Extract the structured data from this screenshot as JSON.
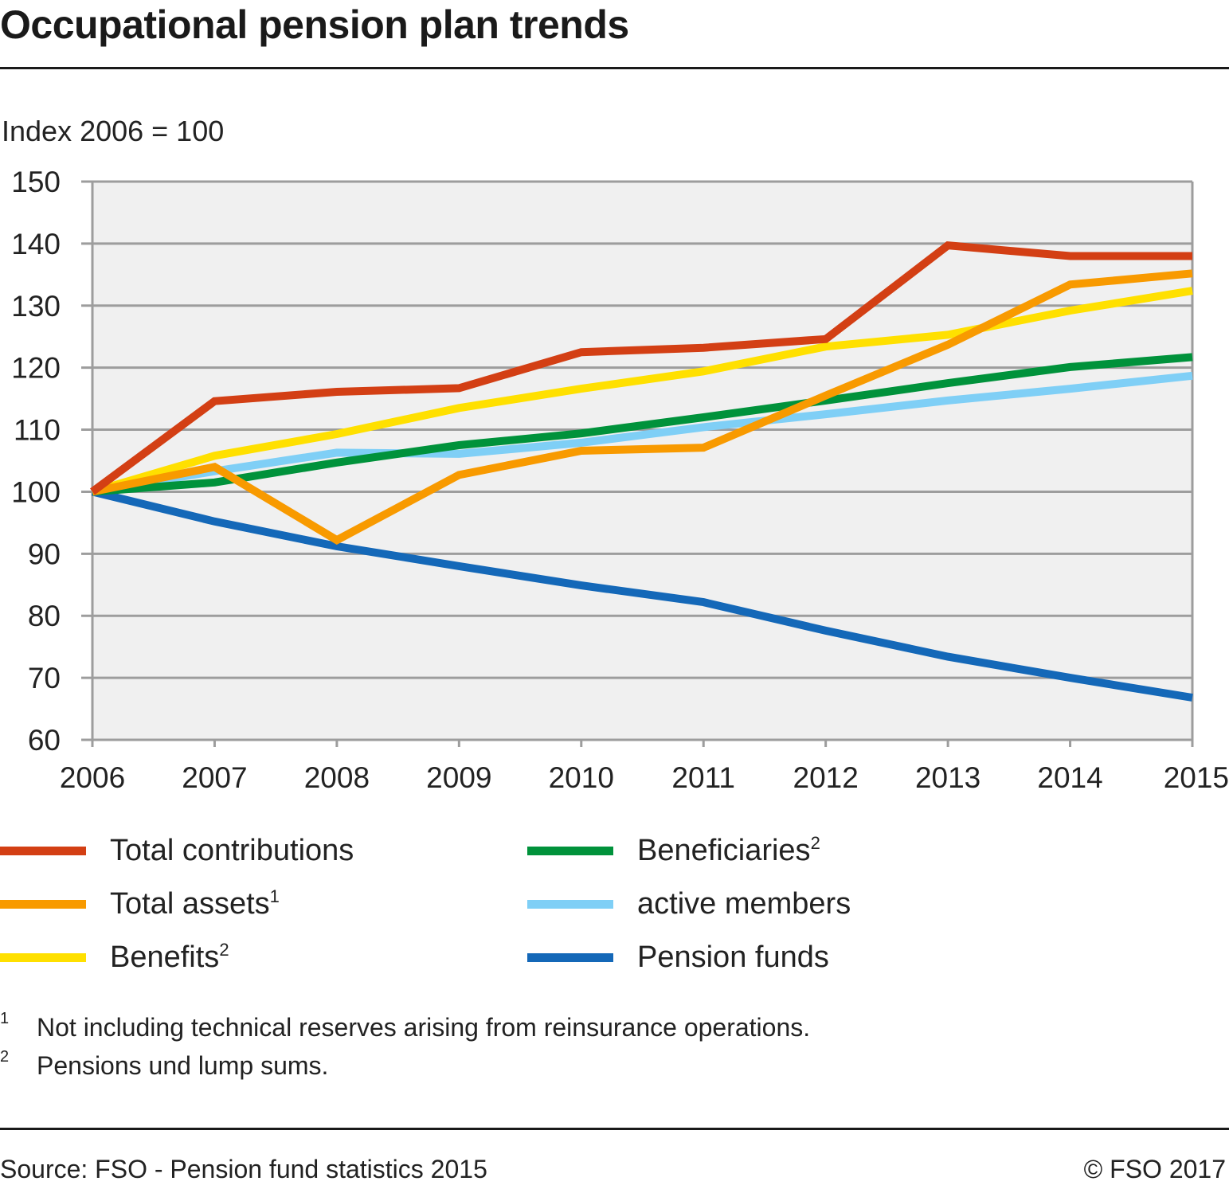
{
  "header": {
    "title": "Occupational pension plan trends",
    "unit_label": "Index 2006 = 100"
  },
  "legend": [
    {
      "label": "Total contributions",
      "sup": "",
      "color": "#d33f14"
    },
    {
      "label": "Total assets",
      "sup": "1",
      "color": "#f89a00"
    },
    {
      "label": "Benefits",
      "sup": "2",
      "color": "#ffe000"
    },
    {
      "label": "Beneficiaries",
      "sup": "2",
      "color": "#00923b"
    },
    {
      "label": "active members",
      "sup": "",
      "color": "#7fcff6"
    },
    {
      "label": "Pension funds",
      "sup": "",
      "color": "#1468b8"
    }
  ],
  "footnotes": [
    {
      "num": "1",
      "text": "Not including technical reserves arising from reinsurance operations."
    },
    {
      "num": "2",
      "text": "Pensions und lump sums."
    }
  ],
  "footer": {
    "source": "Source: FSO - Pension fund statistics 2015",
    "copyright": "© FSO 2017"
  },
  "chart_data": {
    "type": "line",
    "title": "Occupational pension plan trends",
    "xlabel": "",
    "ylabel": "Index 2006 = 100",
    "ylim": [
      60,
      150
    ],
    "yticks": [
      60,
      70,
      80,
      90,
      100,
      110,
      120,
      130,
      140,
      150
    ],
    "grid": true,
    "legend_position": "bottom",
    "x": [
      "2006",
      "2007",
      "2008",
      "2009",
      "2010",
      "2011",
      "2012",
      "2013",
      "2014",
      "2015"
    ],
    "series": [
      {
        "name": "Pension funds",
        "color": "#1468b8",
        "values": [
          100,
          95.2,
          91.2,
          88.0,
          84.9,
          82.2,
          77.6,
          73.4,
          70.0,
          66.8
        ]
      },
      {
        "name": "active members",
        "color": "#7fcff6",
        "values": [
          100,
          103.3,
          106.3,
          106.1,
          107.9,
          110.4,
          112.5,
          114.7,
          116.6,
          118.7
        ]
      },
      {
        "name": "Beneficiaries",
        "color": "#00923b",
        "values": [
          100,
          101.5,
          104.7,
          107.5,
          109.4,
          112.0,
          114.7,
          117.5,
          120.1,
          121.7
        ]
      },
      {
        "name": "Benefits",
        "color": "#ffe000",
        "values": [
          100,
          105.8,
          109.3,
          113.5,
          116.6,
          119.4,
          123.4,
          125.3,
          129.2,
          132.4
        ]
      },
      {
        "name": "Total assets",
        "color": "#f89a00",
        "values": [
          100,
          104.0,
          92.2,
          102.7,
          106.6,
          107.1,
          115.5,
          123.7,
          133.4,
          135.2
        ]
      },
      {
        "name": "Total contributions",
        "color": "#d33f14",
        "values": [
          100,
          114.6,
          116.1,
          116.7,
          122.5,
          123.2,
          124.6,
          139.7,
          138.0,
          138.0
        ]
      }
    ]
  }
}
